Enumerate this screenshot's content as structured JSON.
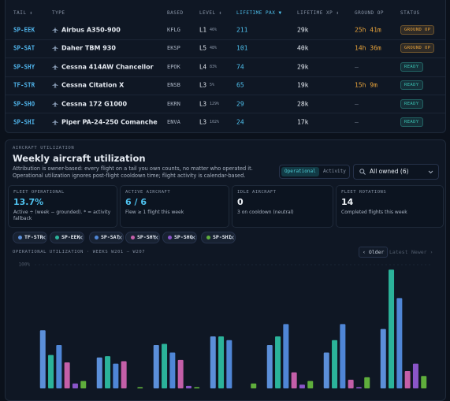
{
  "table": {
    "headers": [
      "TAIL ↕",
      "TYPE",
      "BASED",
      "LEVEL ↕",
      "LIFETIME PAX ▼",
      "LIFETIME XP ↕",
      "GROUND OP",
      "STATUS"
    ],
    "rows": [
      {
        "tail": "SP-EEK",
        "type": "Airbus A350-900",
        "based": "KFLG",
        "level": "L1",
        "progress": "46%",
        "pax": "211",
        "xp": "29k",
        "ground_op": "25h 41m",
        "ground_color": "#e8a33a",
        "status": "GROUND OP",
        "status_color": "#e8a33a"
      },
      {
        "tail": "SP-SAT",
        "type": "Daher TBM 930",
        "based": "EKSP",
        "level": "L5",
        "progress": "48%",
        "pax": "101",
        "xp": "40k",
        "ground_op": "14h 36m",
        "ground_color": "#e8a33a",
        "status": "GROUND OP",
        "status_color": "#e8a33a"
      },
      {
        "tail": "SP-SHY",
        "type": "Cessna 414AW Chancellor",
        "based": "EPOK",
        "level": "L4",
        "progress": "83%",
        "pax": "74",
        "xp": "29k",
        "ground_op": "—",
        "ground_color": "#6b7686",
        "status": "READY",
        "status_color": "#3cc4b4"
      },
      {
        "tail": "TF-STR",
        "type": "Cessna Citation X",
        "based": "ENSB",
        "level": "L3",
        "progress": "5%",
        "pax": "65",
        "xp": "19k",
        "ground_op": "15h 9m",
        "ground_color": "#e8a33a",
        "status": "READY",
        "status_color": "#3cc4b4"
      },
      {
        "tail": "SP-SHO",
        "type": "Cessna 172 G1000",
        "based": "EKRN",
        "level": "L3",
        "progress": "129%",
        "pax": "29",
        "xp": "28k",
        "ground_op": "—",
        "ground_color": "#6b7686",
        "status": "READY",
        "status_color": "#3cc4b4"
      },
      {
        "tail": "SP-SHI",
        "type": "Piper PA-24-250 Comanche",
        "based": "ENVA",
        "level": "L3",
        "progress": "102%",
        "pax": "24",
        "xp": "17k",
        "ground_op": "—",
        "ground_color": "#6b7686",
        "status": "READY",
        "status_color": "#3cc4b4"
      }
    ]
  },
  "utilization": {
    "eyebrow": "AIRCRAFT UTILIZATION",
    "title": "Weekly aircraft utilization",
    "description": "Attribution is owner-based: every flight on a tail you own counts, no matter who operated it. Operational utilization ignores post-flight cooldown time; flight activity is calendar-based.",
    "toggle": [
      "Operational",
      "Activity"
    ],
    "filter": "All owned (6)",
    "cards": [
      {
        "label": "FLEET OPERATIONAL",
        "value": "13.7%",
        "note": "Active ÷ (week − grounded). * = activity fallback"
      },
      {
        "label": "ACTIVE AIRCRAFT",
        "value": "6 / 6",
        "note": "Flew ≥ 1 flight this week"
      },
      {
        "label": "IDLE AIRCRAFT",
        "value": "0",
        "note": "3 on cooldown (neutral)"
      },
      {
        "label": "FLEET ROTATIONS",
        "value": "14",
        "note": "Completed flights this week"
      }
    ],
    "pager": [
      "‹ Older",
      "Latest",
      "Newer ›"
    ]
  },
  "chart_data": {
    "type": "bar",
    "title": "OPERATIONAL UTILIZATION · WEEKS W201 – W207",
    "categories": [
      null,
      null,
      null,
      null,
      null,
      null,
      null
    ],
    "series": [
      {
        "name": "TF-STR",
        "color": "#5b8fd9",
        "values": [
          47,
          25,
          35,
          42,
          35,
          29,
          48
        ]
      },
      {
        "name": "SP-EEK",
        "color": "#2bb39a",
        "values": [
          27,
          26,
          36,
          42,
          42,
          39,
          96
        ]
      },
      {
        "name": "SP-SAT",
        "color": "#4f86d6",
        "values": [
          35,
          20,
          29,
          39,
          52,
          52,
          73
        ]
      },
      {
        "name": "SP-SHY",
        "color": "#c45fa8",
        "values": [
          21,
          22,
          23,
          0,
          13,
          7,
          14
        ]
      },
      {
        "name": "SP-SHO",
        "color": "#8a55c9",
        "values": [
          4,
          0,
          2,
          0,
          3,
          1,
          20
        ]
      },
      {
        "name": "SP-SHI",
        "color": "#5fae3c",
        "values": [
          6,
          1,
          1,
          4,
          6,
          9,
          10
        ]
      }
    ],
    "ylim": [
      0,
      100
    ],
    "yticks": [
      {
        "value": 100,
        "label": "100%"
      }
    ],
    "grid": true
  }
}
